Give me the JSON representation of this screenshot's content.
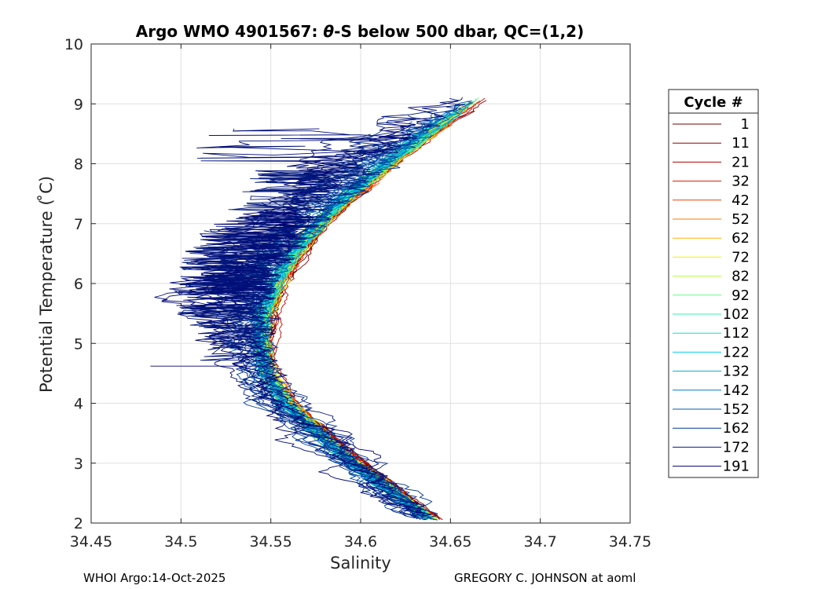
{
  "chart_data": {
    "type": "line",
    "title_prefix": "Argo WMO 4901567: ",
    "title_theta": "θ",
    "title_suffix": "-S below 500 dbar,  QC=(1,2)",
    "xlabel": "Salinity",
    "ylabel": "Potential Temperature ( ̊C)",
    "xlim": [
      34.45,
      34.75
    ],
    "ylim": [
      2,
      10
    ],
    "xticks": [
      "34.45",
      "34.5",
      "34.55",
      "34.6",
      "34.65",
      "34.7",
      "34.75"
    ],
    "yticks": [
      "2",
      "3",
      "4",
      "5",
      "6",
      "7",
      "8",
      "9",
      "10"
    ],
    "grid": true,
    "legend_title": "Cycle #",
    "legend_position": "outside-right",
    "legend": [
      {
        "label": "1",
        "color": "#6b0000"
      },
      {
        "label": "11",
        "color": "#8a0000"
      },
      {
        "label": "21",
        "color": "#b00000"
      },
      {
        "label": "32",
        "color": "#d81800"
      },
      {
        "label": "42",
        "color": "#f04000"
      },
      {
        "label": "52",
        "color": "#ff7a00"
      },
      {
        "label": "62",
        "color": "#ffb400"
      },
      {
        "label": "72",
        "color": "#f8f000"
      },
      {
        "label": "82",
        "color": "#b8ff38"
      },
      {
        "label": "92",
        "color": "#60ff80"
      },
      {
        "label": "102",
        "color": "#30f0a8"
      },
      {
        "label": "112",
        "color": "#10e0c8"
      },
      {
        "label": "122",
        "color": "#00d0f0"
      },
      {
        "label": "132",
        "color": "#00a8d8"
      },
      {
        "label": "142",
        "color": "#0080c8"
      },
      {
        "label": "152",
        "color": "#0058b0"
      },
      {
        "label": "162",
        "color": "#003898"
      },
      {
        "label": "172",
        "color": "#001c80"
      },
      {
        "label": "191",
        "color": "#000070"
      }
    ],
    "mean_profile": {
      "theta": [
        2.05,
        2.5,
        3.0,
        3.5,
        4.0,
        4.5,
        5.0,
        5.5,
        6.0,
        6.5,
        7.0,
        7.5,
        8.0,
        8.5,
        9.0
      ],
      "salinity": [
        34.643,
        34.622,
        34.6,
        34.58,
        34.562,
        34.551,
        34.548,
        34.55,
        34.556,
        34.566,
        34.58,
        34.598,
        34.618,
        34.64,
        34.664
      ]
    },
    "late_cycle_anomalies": {
      "theta": [
        4.6,
        5.0,
        5.5,
        6.0,
        6.5,
        7.0,
        7.5,
        8.0
      ],
      "salinity_min": [
        34.485,
        34.51,
        34.488,
        34.485,
        34.49,
        34.505,
        34.52,
        34.53
      ]
    }
  },
  "footer": {
    "left": "WHOI Argo:14-Oct-2025",
    "right": "GREGORY C. JOHNSON at aoml"
  }
}
